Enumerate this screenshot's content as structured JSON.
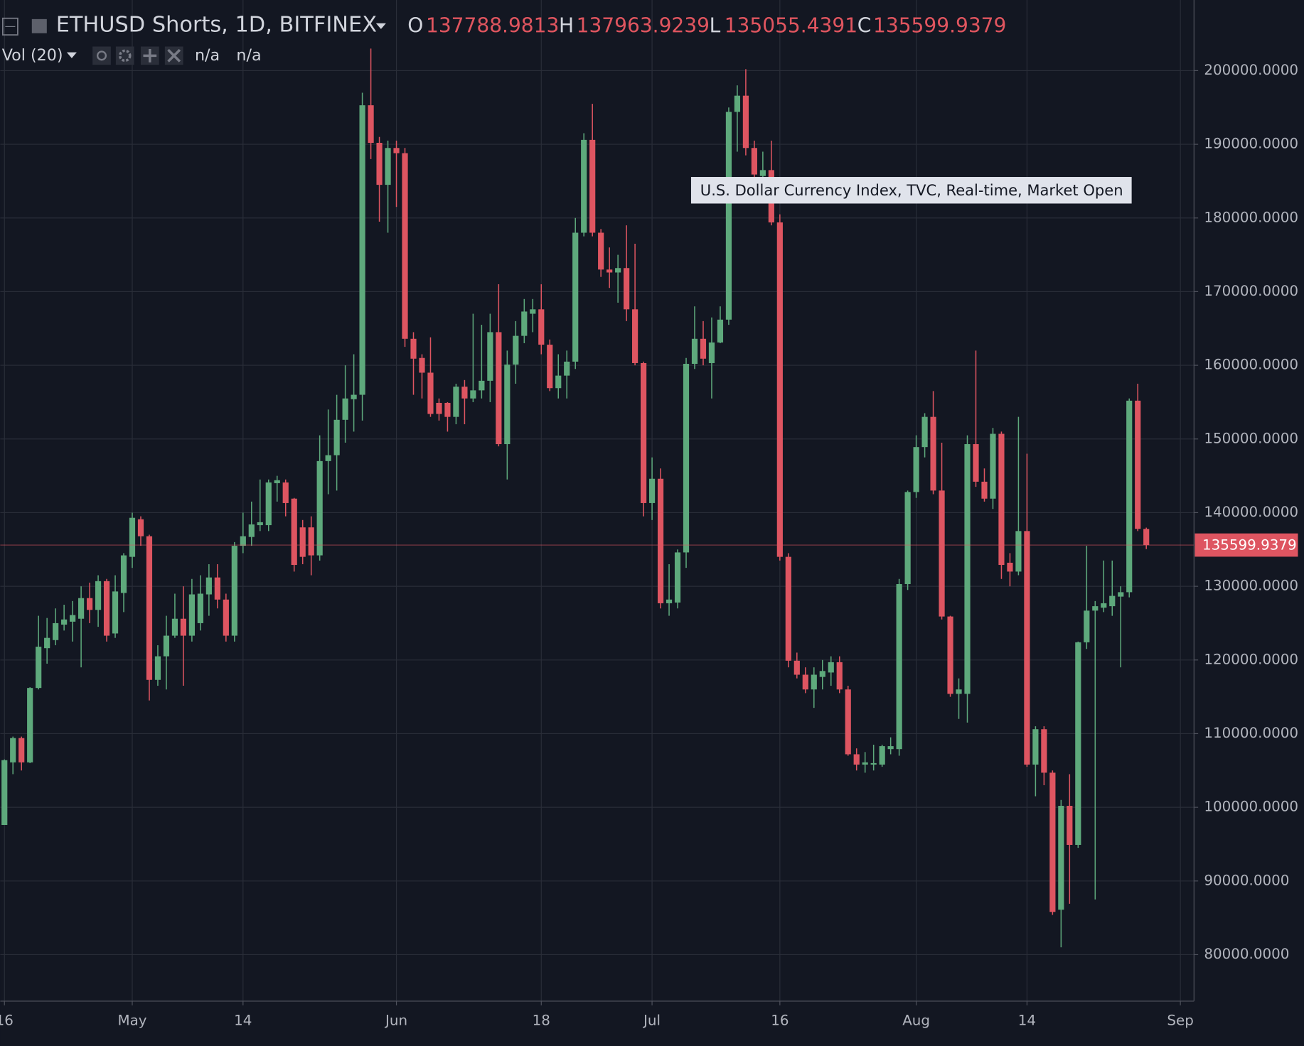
{
  "header": {
    "title": "ETHUSD Shorts, 1D, BITFINEX",
    "ohlc_labels": [
      "O",
      "H",
      "L",
      "C"
    ],
    "indicator": "Vol (20)",
    "indicator_values": [
      "n/a",
      "n/a"
    ]
  },
  "tooltip": "U.S. Dollar Currency Index, TVC, Real-time, Market Open",
  "chart_data": {
    "type": "candlestick",
    "up_color": "#5ea97c",
    "down_color": "#de5561",
    "grid": true,
    "xlim": [
      -0.49,
      139.6
    ],
    "xticks": [
      {
        "value": 0,
        "label": "16"
      },
      {
        "value": 15,
        "label": "May"
      },
      {
        "value": 28,
        "label": "14"
      },
      {
        "value": 46,
        "label": "Jun"
      },
      {
        "value": 63,
        "label": "18"
      },
      {
        "value": 76,
        "label": "Jul"
      },
      {
        "value": 91,
        "label": "16"
      },
      {
        "value": 107,
        "label": "Aug"
      },
      {
        "value": 120,
        "label": "14"
      },
      {
        "value": 138,
        "label": "Sep"
      }
    ],
    "ylim": [
      73690,
      209590
    ],
    "yticks": [
      {
        "value": 80000,
        "label": "80000.0000"
      },
      {
        "value": 90000,
        "label": "90000.0000"
      },
      {
        "value": 100000,
        "label": "100000.0000"
      },
      {
        "value": 110000,
        "label": "110000.0000"
      },
      {
        "value": 120000,
        "label": "120000.0000"
      },
      {
        "value": 130000,
        "label": "130000.0000"
      },
      {
        "value": 140000,
        "label": "140000.0000"
      },
      {
        "value": 150000,
        "label": "150000.0000"
      },
      {
        "value": 160000,
        "label": "160000.0000"
      },
      {
        "value": 170000,
        "label": "170000.0000"
      },
      {
        "value": 180000,
        "label": "180000.0000"
      },
      {
        "value": 190000,
        "label": "190000.0000"
      },
      {
        "value": 200000,
        "label": "200000.0000"
      }
    ],
    "open": [
      97600,
      106100,
      109400,
      106100,
      116200,
      121600,
      122700,
      124800,
      125200,
      125600,
      128400,
      126800,
      130700,
      123600,
      129100,
      134000,
      139100,
      136800,
      117300,
      120500,
      123300,
      125600,
      123300,
      125000,
      128900,
      131200,
      128200,
      123300,
      135500,
      136700,
      138300,
      138300,
      144000,
      144100,
      141900,
      138000,
      138000,
      134200,
      147000,
      147800,
      152600,
      155400,
      156000,
      195300,
      190200,
      184500,
      189500,
      188800,
      163600,
      161000,
      159000,
      154900,
      154900,
      153000,
      157100,
      155500,
      156600,
      157900,
      164500,
      149300,
      160100,
      164000,
      167000,
      167600,
      162800,
      156900,
      158600,
      160500,
      178000,
      190600,
      178000,
      173000,
      172600,
      173200,
      167600,
      160300,
      141300,
      144600,
      127700,
      127800,
      134600,
      160200,
      163600,
      160300,
      163100,
      166200,
      194400,
      196600,
      189500,
      185700,
      186500,
      179400,
      134000,
      119900,
      118000,
      116000,
      117700,
      118300,
      119700,
      116000,
      107200,
      105800,
      105800,
      105800,
      107900,
      107900,
      130300,
      142800,
      148900,
      153000,
      143000,
      125900,
      115400,
      115400,
      149300,
      144200,
      141900,
      150700,
      133200,
      132000,
      137500,
      105800,
      110600,
      104700,
      86100,
      100200,
      94900,
      122400,
      126700,
      127100,
      127300,
      128600,
      129200,
      155200,
      137788.9813
    ],
    "high": [
      106500,
      109600,
      109600,
      116300,
      126000,
      125700,
      127000,
      127500,
      128000,
      130000,
      130500,
      131500,
      131000,
      131500,
      134500,
      140000,
      139500,
      137000,
      122000,
      126000,
      129000,
      130000,
      131000,
      131500,
      133000,
      133000,
      129000,
      136000,
      140000,
      141500,
      144500,
      144500,
      145000,
      144500,
      142000,
      139000,
      139500,
      150500,
      154000,
      156000,
      160000,
      161500,
      197000,
      203000,
      191000,
      190500,
      190500,
      189500,
      164500,
      161500,
      163800,
      155500,
      155000,
      157500,
      158000,
      167000,
      165500,
      167000,
      171000,
      162000,
      166000,
      169000,
      169000,
      171000,
      163500,
      161500,
      162000,
      180000,
      191500,
      195500,
      178500,
      176000,
      175000,
      179000,
      176500,
      160500,
      147500,
      146000,
      133000,
      135000,
      161000,
      168000,
      166000,
      166500,
      168000,
      195000,
      198000,
      200200,
      190500,
      189000,
      190500,
      180500,
      134500,
      121000,
      119000,
      119000,
      120000,
      120500,
      120500,
      116500,
      108000,
      107500,
      108500,
      108500,
      109500,
      131000,
      143000,
      150500,
      153500,
      156500,
      149500,
      126000,
      117500,
      150500,
      162000,
      146000,
      151500,
      151000,
      134500,
      153000,
      148000,
      111000,
      111000,
      105000,
      101000,
      104500,
      122500,
      135500,
      128000,
      133500,
      133500,
      130000,
      155500,
      157500,
      137963.9239
    ],
    "low": [
      97600,
      104500,
      105000,
      106000,
      116000,
      119500,
      122000,
      124000,
      122500,
      119000,
      125000,
      124500,
      122500,
      123000,
      126500,
      132500,
      135500,
      114500,
      116500,
      116000,
      123000,
      116500,
      122500,
      124000,
      126000,
      127000,
      122500,
      122500,
      134500,
      135500,
      137500,
      137500,
      141500,
      139500,
      132000,
      133000,
      131500,
      133500,
      142500,
      143000,
      149500,
      151000,
      152500,
      188000,
      179500,
      178000,
      181500,
      162500,
      156000,
      155500,
      153000,
      152500,
      151000,
      152000,
      152000,
      155000,
      155500,
      155000,
      149000,
      144500,
      157500,
      163000,
      164500,
      161500,
      156500,
      155500,
      155500,
      159500,
      177500,
      177500,
      172000,
      170500,
      168500,
      166000,
      160000,
      139500,
      139000,
      127000,
      126000,
      127000,
      132500,
      159500,
      160000,
      155500,
      163000,
      165500,
      189000,
      188500,
      185000,
      184500,
      179000,
      133500,
      119000,
      117500,
      115500,
      113500,
      116000,
      116500,
      115500,
      107000,
      105000,
      104700,
      105000,
      105500,
      107200,
      107000,
      129500,
      142000,
      147500,
      142500,
      125500,
      115000,
      112000,
      111500,
      143500,
      141500,
      140500,
      131000,
      130000,
      131500,
      105500,
      101500,
      103000,
      85400,
      81000,
      86900,
      94500,
      121500,
      87500,
      126500,
      126000,
      119000,
      128500,
      137500,
      135055.4391
    ],
    "close": [
      106400,
      109400,
      106100,
      116200,
      121800,
      123000,
      125000,
      125500,
      126100,
      128400,
      126800,
      130700,
      123300,
      129300,
      134200,
      139300,
      136800,
      117300,
      120500,
      123300,
      125600,
      123300,
      128900,
      129000,
      131200,
      128200,
      123300,
      135500,
      136800,
      138400,
      138700,
      144100,
      144400,
      141300,
      132900,
      134000,
      134200,
      147000,
      147800,
      152600,
      155500,
      156000,
      195300,
      190200,
      184500,
      189500,
      188800,
      163600,
      160900,
      159000,
      153400,
      153400,
      153000,
      157100,
      155500,
      156600,
      157900,
      164500,
      149300,
      160100,
      164000,
      167300,
      167600,
      162800,
      156900,
      158600,
      160500,
      178000,
      190600,
      178000,
      173000,
      172600,
      173200,
      167600,
      160300,
      141300,
      144600,
      127700,
      128200,
      134600,
      160200,
      163600,
      160900,
      163100,
      166200,
      194400,
      196600,
      189500,
      185900,
      186500,
      179400,
      134000,
      119900,
      118000,
      116000,
      118000,
      118500,
      119700,
      116000,
      107200,
      105800,
      106100,
      106000,
      108300,
      108300,
      130300,
      142800,
      148900,
      153000,
      143000,
      125900,
      115400,
      116000,
      149300,
      144200,
      141900,
      150700,
      132900,
      132000,
      137500,
      105800,
      110600,
      104700,
      85800,
      100200,
      94900,
      122400,
      126700,
      127300,
      127700,
      128700,
      129200,
      155200,
      137800,
      135599.9379
    ]
  }
}
